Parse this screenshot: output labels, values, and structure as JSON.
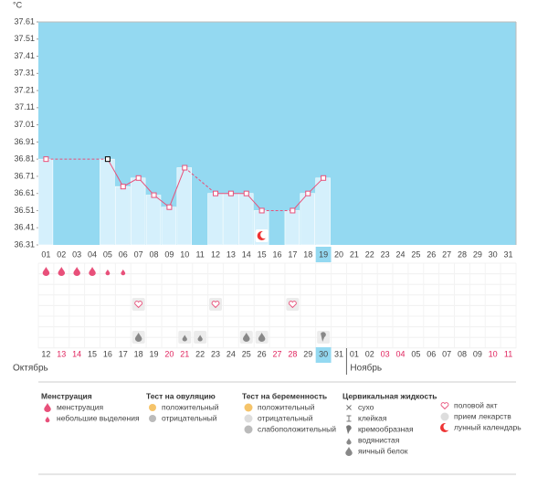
{
  "chart_data": {
    "type": "line",
    "y_label": "°C",
    "categories": [
      "01",
      "02",
      "03",
      "04",
      "05",
      "06",
      "07",
      "08",
      "09",
      "10",
      "11",
      "12",
      "13",
      "14",
      "15",
      "16",
      "17",
      "18",
      "19",
      "20",
      "21",
      "22",
      "23",
      "24",
      "25",
      "26",
      "27",
      "28",
      "29",
      "30",
      "31"
    ],
    "values": [
      36.81,
      null,
      null,
      null,
      36.81,
      36.65,
      36.7,
      36.6,
      36.53,
      36.76,
      null,
      36.61,
      36.61,
      36.61,
      36.51,
      null,
      36.51,
      36.61,
      36.7,
      null,
      null,
      null,
      null,
      null,
      null,
      null,
      null,
      null,
      null,
      null,
      null
    ],
    "ylim": [
      36.31,
      37.61
    ],
    "yticks": [
      36.31,
      36.41,
      36.51,
      36.61,
      36.71,
      36.81,
      36.91,
      37.01,
      37.11,
      37.21,
      37.31,
      37.41,
      37.51,
      37.61
    ],
    "line_color": "#e8507a",
    "background_color": "#94d9f1",
    "bar_color": "#d5f0fc",
    "highlight": "19",
    "selected": "05",
    "dates": [
      {
        "text": "12",
        "weekend": false
      },
      {
        "text": "13",
        "weekend": true
      },
      {
        "text": "14",
        "weekend": true
      },
      {
        "text": "15",
        "weekend": false
      },
      {
        "text": "16",
        "weekend": false
      },
      {
        "text": "17",
        "weekend": false
      },
      {
        "text": "18",
        "weekend": false
      },
      {
        "text": "19",
        "weekend": false
      },
      {
        "text": "20",
        "weekend": true
      },
      {
        "text": "21",
        "weekend": true
      },
      {
        "text": "22",
        "weekend": false
      },
      {
        "text": "23",
        "weekend": false
      },
      {
        "text": "24",
        "weekend": false
      },
      {
        "text": "25",
        "weekend": false
      },
      {
        "text": "26",
        "weekend": false
      },
      {
        "text": "27",
        "weekend": true
      },
      {
        "text": "28",
        "weekend": true
      },
      {
        "text": "29",
        "weekend": false
      },
      {
        "text": "30",
        "weekend": false
      },
      {
        "text": "31",
        "weekend": false
      },
      {
        "text": "01",
        "weekend": false
      },
      {
        "text": "02",
        "weekend": false
      },
      {
        "text": "03",
        "weekend": true
      },
      {
        "text": "04",
        "weekend": true
      },
      {
        "text": "05",
        "weekend": false
      },
      {
        "text": "06",
        "weekend": false
      },
      {
        "text": "07",
        "weekend": false
      },
      {
        "text": "08",
        "weekend": false
      },
      {
        "text": "09",
        "weekend": false
      },
      {
        "text": "10",
        "weekend": true
      },
      {
        "text": "11",
        "weekend": true
      }
    ],
    "highlight_date": "30",
    "weekend_color": "#e0245e",
    "months": [
      "Октябрь",
      "Ноябрь"
    ],
    "events": {
      "menstruation": [
        "01",
        "02",
        "03",
        "04"
      ],
      "spotting": [
        "05",
        "06"
      ],
      "intercourse": [
        "07",
        "12",
        "17"
      ],
      "egg_white": [
        "07",
        "14",
        "15"
      ],
      "watery": [
        "10",
        "11"
      ],
      "creamy": [
        "19"
      ],
      "lunar": [
        "15"
      ]
    }
  },
  "legend": [
    {
      "title": "Менструация",
      "items": [
        "менструация",
        "небольшие выделения"
      ]
    },
    {
      "title": "Тест на овуляцию",
      "items": [
        "положительный",
        "отрицательный"
      ]
    },
    {
      "title": "Тест на беременность",
      "items": [
        "положительный",
        "отрицательный",
        "слабоположительный"
      ]
    },
    {
      "title": "Цервикальная жидкость",
      "items": [
        "сухо",
        "клейкая",
        "кремообразная",
        "водянистая",
        "яичный белок"
      ]
    },
    {
      "items": [
        "половой акт",
        "прием лекарств",
        "лунный календарь"
      ]
    }
  ]
}
